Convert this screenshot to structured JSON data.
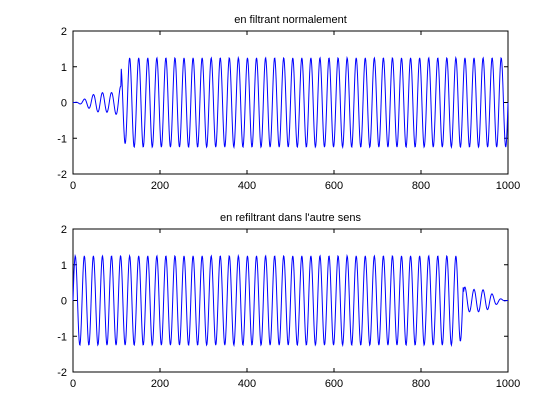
{
  "chart_data": [
    {
      "type": "line",
      "title": "en filtrant normalement",
      "xlim": [
        0,
        1000
      ],
      "ylim": [
        -2,
        2
      ],
      "xticks": [
        "0",
        "200",
        "400",
        "600",
        "800",
        "1000"
      ],
      "yticks": [
        "2",
        "1",
        "0",
        "-1",
        "-2"
      ],
      "grid": false,
      "legend": "none",
      "series_color": "#0000ff",
      "signal": {
        "samples": 1000,
        "cycles_per_sample": 0.048,
        "amplitude": 1.25,
        "envelope": "rises from 0 at x=0 to full amplitude by x~130, constant until x=1000",
        "ramp_up": [
          0,
          130
        ]
      }
    },
    {
      "type": "line",
      "title": "en refiltrant dans l'autre sens",
      "xlim": [
        0,
        1000
      ],
      "ylim": [
        -2,
        2
      ],
      "xticks": [
        "0",
        "200",
        "400",
        "600",
        "800",
        "1000"
      ],
      "yticks": [
        "2",
        "1",
        "0",
        "-1",
        "-2"
      ],
      "grid": false,
      "legend": "none",
      "series_color": "#0000ff",
      "signal": {
        "samples": 1000,
        "cycles_per_sample": 0.048,
        "amplitude": 1.25,
        "envelope": "full amplitude from x=0 to x~880, then decays to 0 by x~1000",
        "ramp_down": [
          880,
          1000
        ]
      }
    }
  ]
}
